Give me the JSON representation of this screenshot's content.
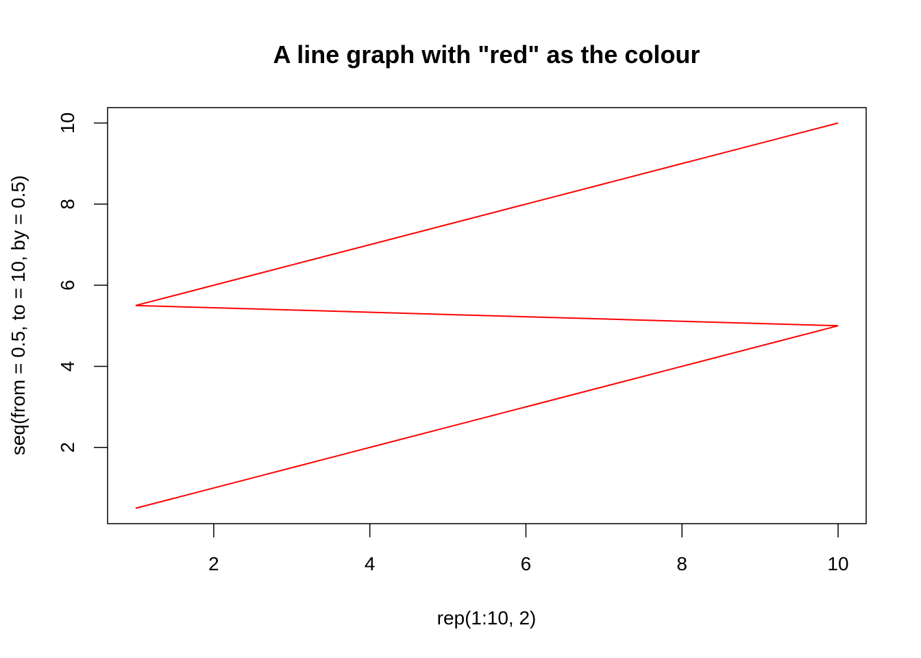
{
  "chart_data": {
    "type": "line",
    "title": "A line graph with \"red\" as the colour",
    "xlabel": "rep(1:10, 2)",
    "ylabel": "seq(from = 0.5, to = 10, by = 0.5)",
    "x": [
      1,
      2,
      3,
      4,
      5,
      6,
      7,
      8,
      9,
      10,
      1,
      2,
      3,
      4,
      5,
      6,
      7,
      8,
      9,
      10
    ],
    "series": [
      {
        "values": [
          0.5,
          1,
          1.5,
          2,
          2.5,
          3,
          3.5,
          4,
          4.5,
          5,
          5.5,
          6,
          6.5,
          7,
          7.5,
          8,
          8.5,
          9,
          9.5,
          10
        ],
        "color": "#ff0000"
      }
    ],
    "xlim": [
      0.64,
      10.36
    ],
    "ylim": [
      0.12,
      10.38
    ],
    "xticks": [
      2,
      4,
      6,
      8,
      10
    ],
    "yticks": [
      2,
      4,
      6,
      8,
      10
    ],
    "xtick_labels": [
      "2",
      "4",
      "6",
      "8",
      "10"
    ],
    "ytick_labels": [
      "2",
      "4",
      "6",
      "8",
      "10"
    ],
    "grid": false,
    "legend": "none"
  }
}
